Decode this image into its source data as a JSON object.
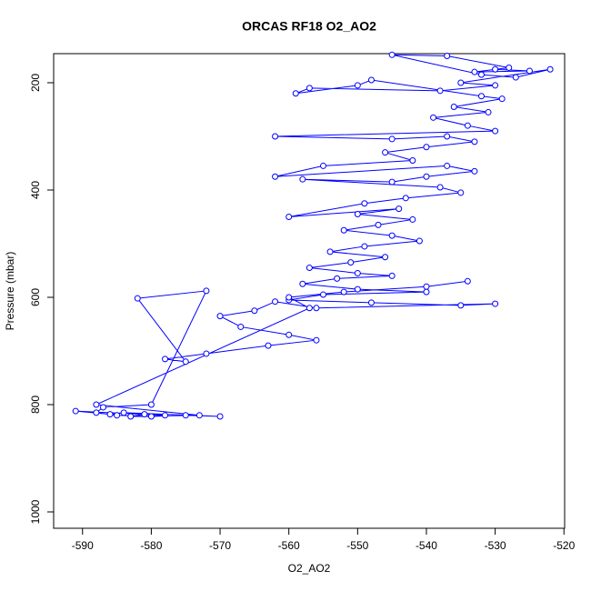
{
  "chart_data": {
    "type": "scatter_line",
    "title": "ORCAS RF18 O2_AO2",
    "x_label": "O2_AO2",
    "y_label": "Pressure (mbar)",
    "color": "#0000ff",
    "xlim": [
      -594.2,
      -519.9
    ],
    "xticks": [
      -590,
      -580,
      -570,
      -560,
      -550,
      -540,
      -530,
      -520
    ],
    "ylim": [
      1030.5,
      145.8
    ],
    "yticks": [
      200,
      400,
      600,
      800,
      1000
    ],
    "x": [
      -530,
      -525,
      -533,
      -528,
      -537,
      -545,
      -532,
      -527,
      -522,
      -535,
      -530,
      -538,
      -557,
      -559,
      -550,
      -548,
      -532,
      -529,
      -536,
      -531,
      -539,
      -534,
      -530,
      -562,
      -545,
      -537,
      -533,
      -540,
      -546,
      -542,
      -555,
      -562,
      -537,
      -533,
      -540,
      -545,
      -558,
      -538,
      -535,
      -543,
      -549,
      -560,
      -544,
      -550,
      -542,
      -547,
      -552,
      -545,
      -541,
      -549,
      -554,
      -546,
      -551,
      -557,
      -550,
      -545,
      -553,
      -558,
      -550,
      -540,
      -555,
      -560,
      -548,
      -535,
      -530,
      -556,
      -562,
      -565,
      -570,
      -567,
      -560,
      -556,
      -563,
      -572,
      -578,
      -575,
      -582,
      -572,
      -580,
      -587,
      -588,
      -585,
      -580,
      -575,
      -570,
      -584,
      -586,
      -591,
      -578,
      -581,
      -583,
      -573,
      -588,
      -557,
      -560,
      -552,
      -540,
      -534
    ],
    "values": [
      175,
      178,
      180,
      172,
      150,
      148,
      185,
      190,
      175,
      200,
      205,
      215,
      210,
      220,
      205,
      195,
      225,
      230,
      245,
      255,
      265,
      280,
      290,
      300,
      305,
      300,
      310,
      320,
      330,
      345,
      355,
      375,
      355,
      365,
      375,
      385,
      380,
      395,
      405,
      415,
      425,
      450,
      435,
      445,
      455,
      465,
      475,
      485,
      495,
      505,
      515,
      525,
      535,
      545,
      555,
      560,
      565,
      575,
      585,
      590,
      595,
      605,
      610,
      615,
      612,
      620,
      608,
      625,
      635,
      655,
      670,
      680,
      690,
      705,
      715,
      720,
      602,
      588,
      800,
      805,
      815,
      820,
      822,
      820,
      822,
      815,
      818,
      812,
      820,
      818,
      822,
      820,
      800,
      620,
      600,
      590,
      580,
      570
    ]
  }
}
